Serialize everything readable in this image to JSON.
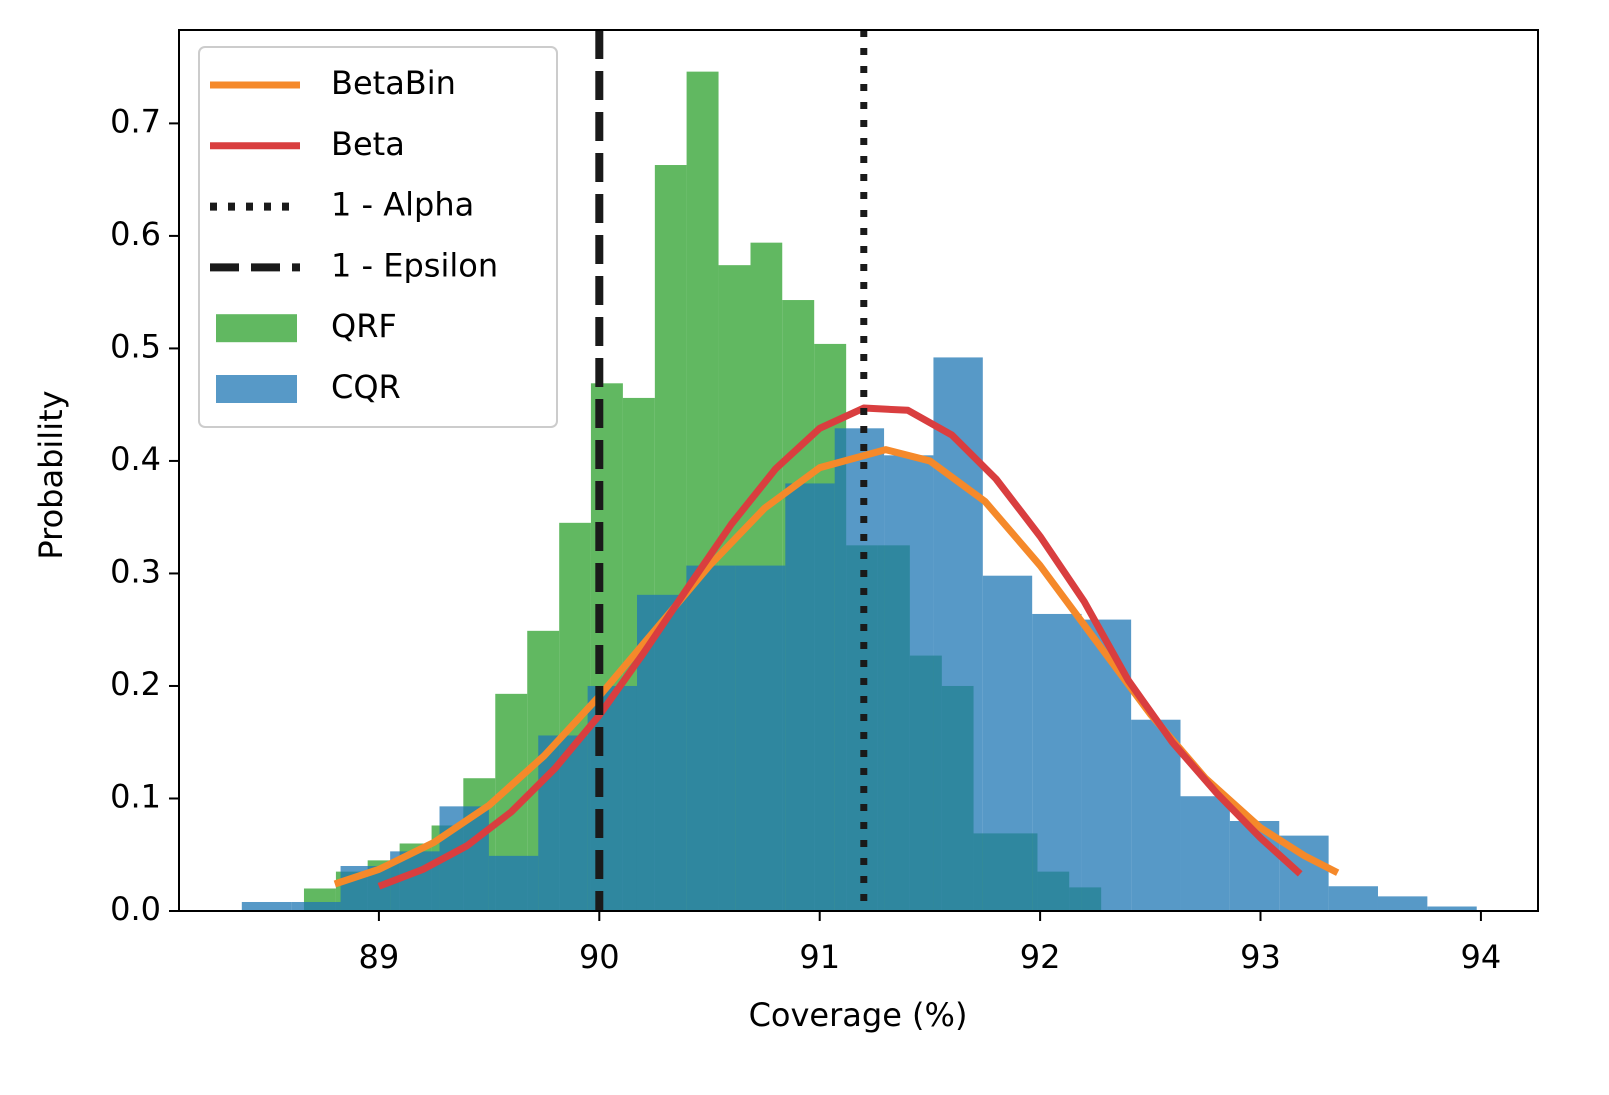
{
  "chart_data": {
    "type": "histogram",
    "xlabel": "Coverage (%)",
    "ylabel": "Probability",
    "xlim": [
      88.093,
      94.259
    ],
    "ylim": [
      0,
      0.783
    ],
    "xticks": [
      89,
      90,
      91,
      92,
      93,
      94
    ],
    "yticks": [
      {
        "value": 0,
        "label": "0.0"
      },
      0.1,
      0.2,
      0.3,
      0.4,
      0.5,
      0.6,
      0.7
    ],
    "legend": "upper left",
    "series": [
      {
        "name": "BetaBin",
        "type": "line",
        "color": "#f5892a",
        "x": [
          88.8,
          89.0,
          89.25,
          89.5,
          89.75,
          90.0,
          90.25,
          90.5,
          90.75,
          91.0,
          91.3,
          91.5,
          91.75,
          92.0,
          92.25,
          92.5,
          92.75,
          93.0,
          93.2,
          93.35
        ],
        "values": [
          0.024,
          0.037,
          0.061,
          0.094,
          0.138,
          0.191,
          0.249,
          0.307,
          0.358,
          0.394,
          0.41,
          0.4,
          0.364,
          0.307,
          0.241,
          0.175,
          0.118,
          0.074,
          0.049,
          0.034
        ]
      },
      {
        "name": "Beta",
        "type": "line",
        "color": "#d93e3f",
        "x": [
          89.0,
          89.2,
          89.4,
          89.6,
          89.8,
          90.0,
          90.2,
          90.4,
          90.6,
          90.8,
          91.0,
          91.2,
          91.4,
          91.6,
          91.8,
          92.0,
          92.2,
          92.4,
          92.6,
          92.8,
          93.0,
          93.18
        ],
        "values": [
          0.022,
          0.037,
          0.058,
          0.088,
          0.127,
          0.174,
          0.229,
          0.287,
          0.344,
          0.393,
          0.429,
          0.447,
          0.445,
          0.423,
          0.384,
          0.333,
          0.275,
          0.205,
          0.15,
          0.105,
          0.065,
          0.033
        ]
      },
      {
        "name": "1 - Alpha",
        "type": "vline",
        "color": "#1a1a1a",
        "linestyle": "dotted",
        "x": 91.2
      },
      {
        "name": "1 - Epsilon",
        "type": "vline",
        "color": "#1a1a1a",
        "linestyle": "dashed",
        "x": 90.0
      },
      {
        "name": "QRF",
        "type": "hist",
        "color": "#2ca02c",
        "bins": [
          88.66,
          88.805,
          88.949,
          89.094,
          89.239,
          89.383,
          89.528,
          89.673,
          89.818,
          89.962,
          90.107,
          90.252,
          90.396,
          90.541,
          90.686,
          90.83,
          90.975,
          91.12,
          91.264,
          91.409,
          91.554,
          91.698,
          91.843,
          91.988,
          92.132,
          92.277
        ],
        "values": [
          0.02,
          0.035,
          0.045,
          0.06,
          0.076,
          0.118,
          0.193,
          0.249,
          0.345,
          0.469,
          0.456,
          0.663,
          0.746,
          0.574,
          0.594,
          0.543,
          0.504,
          0.325,
          0.325,
          0.227,
          0.2,
          0.069,
          0.069,
          0.035,
          0.021
        ]
      },
      {
        "name": "CQR",
        "type": "hist",
        "color": "#1f77b4",
        "bins": [
          88.378,
          88.602,
          88.826,
          89.051,
          89.275,
          89.499,
          89.723,
          89.947,
          90.171,
          90.395,
          90.619,
          90.844,
          91.068,
          91.292,
          91.516,
          91.74,
          91.964,
          92.188,
          92.413,
          92.637,
          92.861,
          93.085,
          93.309,
          93.533,
          93.757,
          93.981
        ],
        "values": [
          0.008,
          0.008,
          0.04,
          0.053,
          0.093,
          0.049,
          0.156,
          0.2,
          0.281,
          0.307,
          0.307,
          0.38,
          0.429,
          0.405,
          0.492,
          0.298,
          0.264,
          0.259,
          0.17,
          0.102,
          0.08,
          0.067,
          0.022,
          0.013,
          0.004
        ]
      }
    ]
  }
}
